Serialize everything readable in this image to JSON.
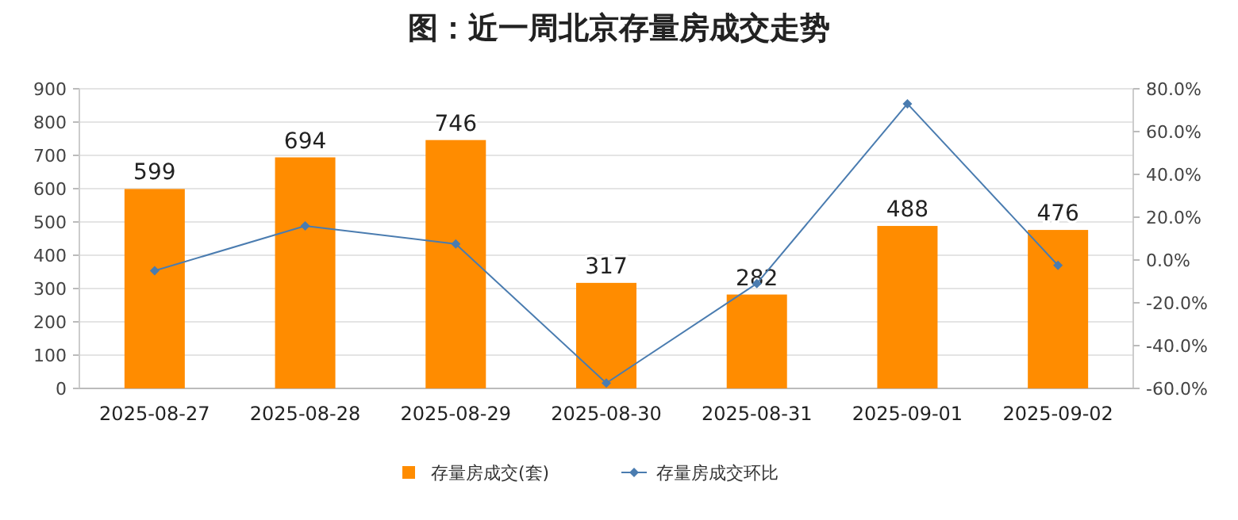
{
  "chart_data": {
    "type": "bar",
    "title": "图：近一周北京存量房成交走势",
    "categories": [
      "2025-08-27",
      "2025-08-28",
      "2025-08-29",
      "2025-08-30",
      "2025-08-31",
      "2025-09-01",
      "2025-09-02"
    ],
    "series": [
      {
        "name": "存量房成交(套)",
        "color": "#ff8c00",
        "values": [
          599,
          694,
          746,
          317,
          282,
          488,
          476
        ],
        "value_labels": [
          "599",
          "694",
          "746",
          "317",
          "282",
          "488",
          "476"
        ]
      },
      {
        "name": "存量房成交环比",
        "type": "line",
        "axis": "y2",
        "color": "#4a7cb0",
        "marker": "diamond",
        "values": [
          -5,
          15.9,
          7.5,
          -57.5,
          -11,
          73,
          -2.5
        ]
      }
    ],
    "ylim": [
      0,
      900
    ],
    "yticks": [
      0,
      100,
      200,
      300,
      400,
      500,
      600,
      700,
      800,
      900
    ],
    "y2lim": [
      -60,
      80
    ],
    "y2ticks": [
      {
        "value": -60,
        "label": "-60.0%"
      },
      {
        "value": -40,
        "label": "-40.0%"
      },
      {
        "value": -20,
        "label": "-20.0%"
      },
      {
        "value": 0,
        "label": "0.0%"
      },
      {
        "value": 20,
        "label": "20.0%"
      },
      {
        "value": 40,
        "label": "40.0%"
      },
      {
        "value": 60,
        "label": "60.0%"
      },
      {
        "value": 80,
        "label": "80.0%"
      }
    ],
    "grid": "y",
    "legend": "bottom"
  }
}
